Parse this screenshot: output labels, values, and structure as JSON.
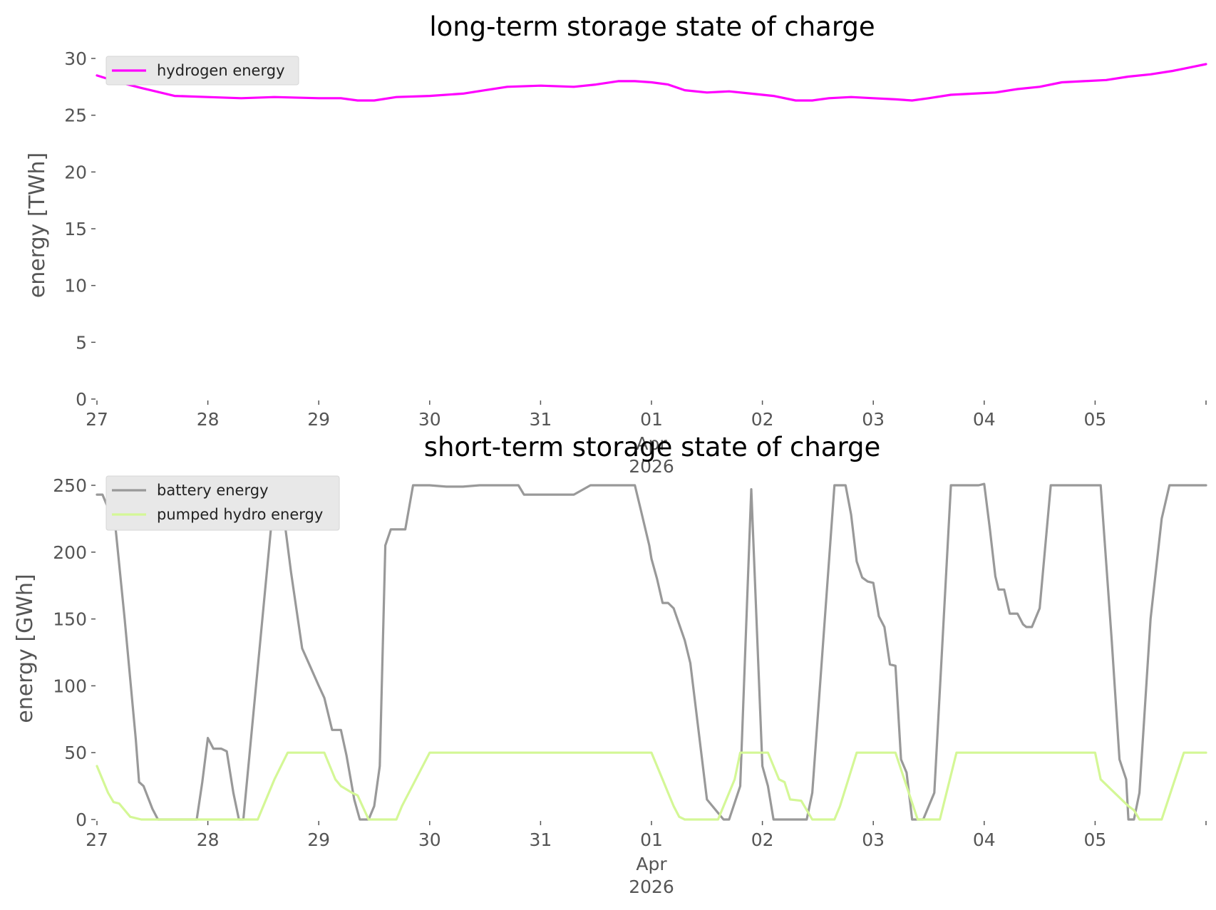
{
  "chart_data": [
    {
      "type": "line",
      "title": "long-term storage state of charge",
      "xlabel": "",
      "ylabel": "energy [TWh]",
      "ylim": [
        0,
        30
      ],
      "yticks": [
        0,
        5,
        10,
        15,
        20,
        25,
        30
      ],
      "xlim_days": [
        0,
        10
      ],
      "xticks": [
        {
          "day": 0,
          "label": "27"
        },
        {
          "day": 1,
          "label": "28"
        },
        {
          "day": 2,
          "label": "29"
        },
        {
          "day": 3,
          "label": "30"
        },
        {
          "day": 4,
          "label": "31"
        },
        {
          "day": 5,
          "label": "01",
          "sub1": "Apr",
          "sub2": "2026"
        },
        {
          "day": 6,
          "label": "02"
        },
        {
          "day": 7,
          "label": "03"
        },
        {
          "day": 8,
          "label": "04"
        },
        {
          "day": 9,
          "label": "05"
        }
      ],
      "grid": false,
      "legend": "top-left",
      "series": [
        {
          "name": "hydrogen energy",
          "color": "#ff00ff",
          "x": [
            0,
            0.2,
            0.4,
            0.7,
            1.0,
            1.3,
            1.6,
            2.0,
            2.2,
            2.35,
            2.5,
            2.7,
            3.0,
            3.3,
            3.5,
            3.7,
            4.0,
            4.3,
            4.5,
            4.7,
            4.85,
            5.0,
            5.15,
            5.3,
            5.5,
            5.7,
            5.9,
            6.1,
            6.3,
            6.45,
            6.6,
            6.8,
            7.0,
            7.2,
            7.35,
            7.5,
            7.7,
            7.9,
            8.1,
            8.3,
            8.5,
            8.7,
            8.9,
            9.1,
            9.3,
            9.5,
            9.7,
            9.9,
            10.0
          ],
          "values": [
            28.5,
            27.9,
            27.4,
            26.7,
            26.6,
            26.5,
            26.6,
            26.5,
            26.5,
            26.3,
            26.3,
            26.6,
            26.7,
            26.9,
            27.2,
            27.5,
            27.6,
            27.5,
            27.7,
            28.0,
            28.0,
            27.9,
            27.7,
            27.2,
            27.0,
            27.1,
            26.9,
            26.7,
            26.3,
            26.3,
            26.5,
            26.6,
            26.5,
            26.4,
            26.3,
            26.5,
            26.8,
            26.9,
            27.0,
            27.3,
            27.5,
            27.9,
            28.0,
            28.1,
            28.4,
            28.6,
            28.9,
            29.3,
            29.5
          ]
        }
      ]
    },
    {
      "type": "line",
      "title": "short-term storage state of charge",
      "xlabel": "",
      "ylabel": "energy [GWh]",
      "ylim": [
        0,
        250
      ],
      "yticks": [
        0,
        50,
        100,
        150,
        200,
        250
      ],
      "xlim_days": [
        0,
        10
      ],
      "xticks": [
        {
          "day": 0,
          "label": "27"
        },
        {
          "day": 1,
          "label": "28"
        },
        {
          "day": 2,
          "label": "29"
        },
        {
          "day": 3,
          "label": "30"
        },
        {
          "day": 4,
          "label": "31"
        },
        {
          "day": 5,
          "label": "01",
          "sub1": "Apr",
          "sub2": "2026"
        },
        {
          "day": 6,
          "label": "02"
        },
        {
          "day": 7,
          "label": "03"
        },
        {
          "day": 8,
          "label": "04"
        },
        {
          "day": 9,
          "label": "05"
        }
      ],
      "grid": false,
      "legend": "top-left",
      "series": [
        {
          "name": "battery energy",
          "color": "#999999",
          "x": [
            0,
            0.05,
            0.1,
            0.15,
            0.25,
            0.35,
            0.38,
            0.42,
            0.5,
            0.55,
            0.6,
            0.7,
            0.9,
            0.95,
            1.0,
            1.05,
            1.12,
            1.17,
            1.23,
            1.28,
            1.32,
            1.6,
            1.65,
            1.75,
            1.85,
            1.92,
            2.0,
            2.05,
            2.12,
            2.2,
            2.25,
            2.32,
            2.37,
            2.45,
            2.5,
            2.55,
            2.6,
            2.65,
            2.72,
            2.78,
            2.85,
            2.95,
            3.0,
            3.15,
            3.3,
            3.45,
            3.8,
            3.85,
            3.9,
            4.0,
            4.3,
            4.45,
            4.5,
            4.85,
            4.9,
            4.98,
            5.0,
            5.05,
            5.1,
            5.15,
            5.2,
            5.3,
            5.35,
            5.5,
            5.65,
            5.7,
            5.8,
            5.9,
            6.0,
            6.05,
            6.1,
            6.15,
            6.3,
            6.4,
            6.45,
            6.65,
            6.75,
            6.8,
            6.85,
            6.9,
            6.95,
            7.0,
            7.05,
            7.1,
            7.15,
            7.2,
            7.25,
            7.3,
            7.35,
            7.45,
            7.55,
            7.7,
            7.95,
            8.0,
            8.05,
            8.1,
            8.13,
            8.18,
            8.23,
            8.3,
            8.35,
            8.38,
            8.43,
            8.5,
            8.6,
            9.0,
            9.05,
            9.15,
            9.22,
            9.28,
            9.3,
            9.35,
            9.4,
            9.5,
            9.6,
            9.67,
            10.0
          ],
          "values": [
            243,
            243,
            233,
            233,
            150,
            60,
            28,
            25,
            8,
            0,
            0,
            0,
            0,
            28,
            61,
            53,
            53,
            51,
            20,
            0,
            0,
            245,
            250,
            185,
            128,
            115,
            100,
            91,
            67,
            67,
            48,
            15,
            0,
            0,
            10,
            40,
            205,
            217,
            217,
            217,
            250,
            250,
            250,
            249,
            249,
            250,
            250,
            243,
            243,
            243,
            243,
            250,
            250,
            250,
            233,
            205,
            195,
            180,
            162,
            162,
            158,
            134,
            117,
            15,
            0,
            0,
            25,
            247,
            40,
            25,
            0,
            0,
            0,
            0,
            20,
            250,
            250,
            228,
            193,
            181,
            178,
            177,
            152,
            144,
            116,
            115,
            45,
            35,
            0,
            0,
            20,
            250,
            250,
            251,
            218,
            182,
            172,
            172,
            154,
            154,
            146,
            144,
            144,
            158,
            250,
            250,
            250,
            134,
            45,
            30,
            0,
            0,
            20,
            150,
            225,
            250,
            250
          ]
        },
        {
          "name": "pumped hydro energy",
          "color": "#d4f796",
          "x": [
            0,
            0.1,
            0.15,
            0.2,
            0.3,
            0.4,
            0.6,
            1.0,
            1.2,
            1.45,
            1.6,
            1.72,
            1.85,
            2.0,
            2.05,
            2.15,
            2.2,
            2.3,
            2.35,
            2.45,
            2.55,
            2.7,
            2.75,
            3.0,
            3.5,
            4.0,
            4.5,
            4.95,
            5.0,
            5.1,
            5.15,
            5.2,
            5.25,
            5.3,
            5.35,
            5.45,
            5.6,
            5.75,
            5.8,
            5.95,
            6.05,
            6.15,
            6.2,
            6.25,
            6.35,
            6.45,
            6.55,
            6.65,
            6.7,
            6.85,
            6.95,
            7.0,
            7.1,
            7.2,
            7.3,
            7.4,
            7.5,
            7.6,
            7.75,
            8.0,
            8.5,
            8.95,
            9.0,
            9.05,
            9.15,
            9.2,
            9.3,
            9.35,
            9.4,
            9.5,
            9.6,
            9.7,
            9.8,
            10.0
          ],
          "values": [
            40,
            20,
            13,
            12,
            2,
            0,
            0,
            0,
            0,
            0,
            30,
            50,
            50,
            50,
            50,
            30,
            25,
            20,
            18,
            0,
            0,
            0,
            10,
            50,
            50,
            50,
            50,
            50,
            50,
            30,
            20,
            10,
            2,
            0,
            0,
            0,
            0,
            30,
            50,
            50,
            50,
            30,
            28,
            15,
            14,
            0,
            0,
            0,
            10,
            50,
            50,
            50,
            50,
            50,
            25,
            0,
            0,
            0,
            50,
            50,
            50,
            50,
            50,
            30,
            22,
            18,
            10,
            7,
            0,
            0,
            0,
            25,
            50,
            50
          ]
        }
      ]
    }
  ]
}
